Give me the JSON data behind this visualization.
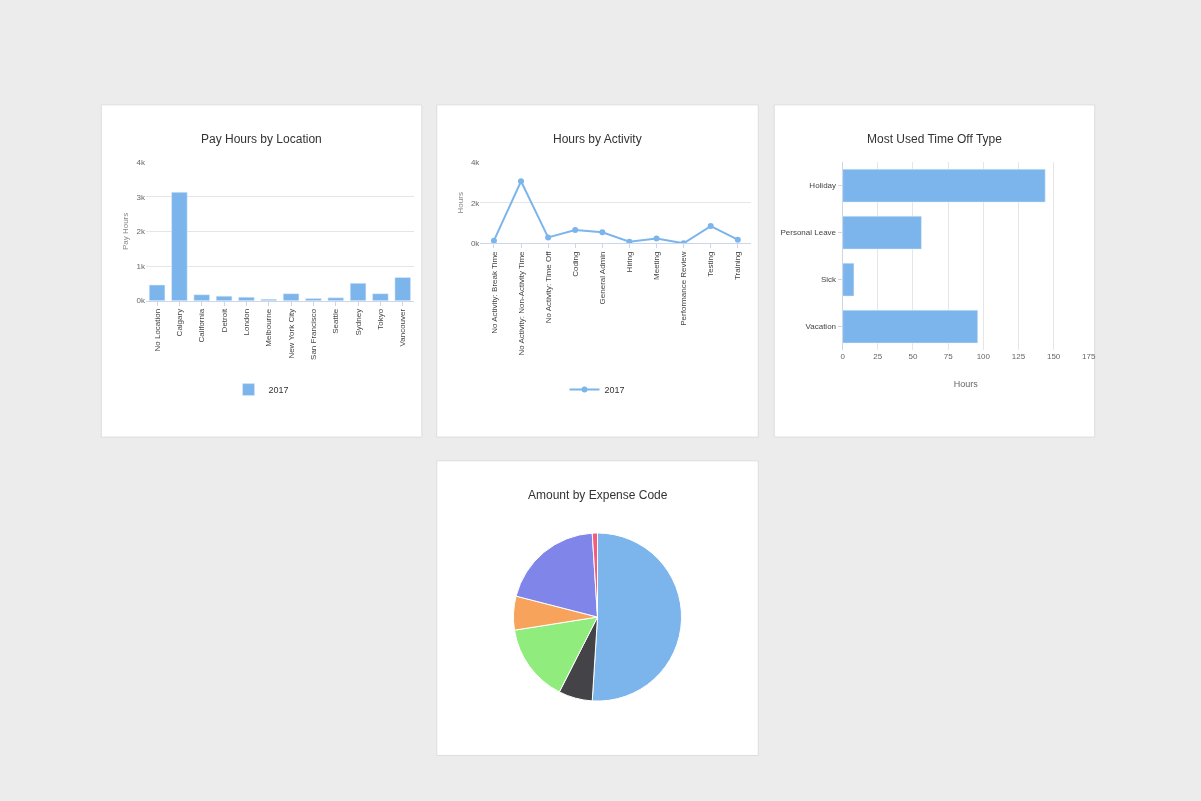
{
  "chart_data": [
    {
      "type": "bar",
      "title": "Pay Hours by Location",
      "ylabel": "Pay Hours",
      "categories": [
        "No Location",
        "Calgary",
        "California",
        "Detroit",
        "London",
        "Melbourne",
        "New York City",
        "San Francisco",
        "Seattle",
        "Sydney",
        "Tokyo",
        "Vancouver"
      ],
      "series": [
        {
          "name": "2017",
          "color": "#7cb5ec",
          "values": [
            450,
            3130,
            170,
            130,
            100,
            40,
            200,
            60,
            80,
            500,
            200,
            670
          ]
        }
      ],
      "ylim": [
        0,
        4000
      ],
      "yticks": [
        {
          "value": 0,
          "label": "0k"
        },
        {
          "value": 1000,
          "label": "1k"
        },
        {
          "value": 2000,
          "label": "2k"
        },
        {
          "value": 3000,
          "label": "3k"
        },
        {
          "value": 4000,
          "label": "4k"
        }
      ],
      "grid": "y",
      "legend": "bottom"
    },
    {
      "type": "line",
      "title": "Hours by Activity",
      "ylabel": "Hours",
      "categories": [
        "No Activity: Break Time",
        "No Activity: Non-Activity Time",
        "No Activity: Time Off",
        "Coding",
        "General Admin",
        "Hiring",
        "Meeting",
        "Performance Review",
        "Testing",
        "Training"
      ],
      "series": [
        {
          "name": "2017",
          "color": "#7cb5ec",
          "values": [
            130,
            3060,
            290,
            650,
            540,
            80,
            240,
            0,
            850,
            180
          ]
        }
      ],
      "ylim": [
        0,
        4000
      ],
      "yticks": [
        {
          "value": 0,
          "label": "0k"
        },
        {
          "value": 2000,
          "label": "2k"
        },
        {
          "value": 4000,
          "label": "4k"
        }
      ],
      "grid": "y",
      "legend": "bottom",
      "marker": "circle"
    },
    {
      "type": "bar",
      "orientation": "horizontal",
      "title": "Most Used Time Off Type",
      "xlabel": "Hours",
      "categories": [
        "Holiday",
        "Personal Leave",
        "Sick",
        "Vacation"
      ],
      "series": [
        {
          "color": "#7cb5ec",
          "values": [
            144,
            56,
            8,
            96
          ]
        }
      ],
      "xlim": [
        0,
        175
      ],
      "xticks": [
        0,
        25,
        50,
        75,
        100,
        125,
        150,
        175
      ],
      "grid": "x"
    },
    {
      "type": "pie",
      "title": "Amount by Expense Code",
      "categories": [
        null,
        null,
        null,
        null,
        null,
        null
      ],
      "values": [
        51,
        6.5,
        15,
        6.5,
        20,
        1
      ],
      "colors": [
        "#7cb5ec",
        "#434348",
        "#90ed7d",
        "#f7a35c",
        "#8085e9",
        "#f15c80"
      ]
    }
  ]
}
